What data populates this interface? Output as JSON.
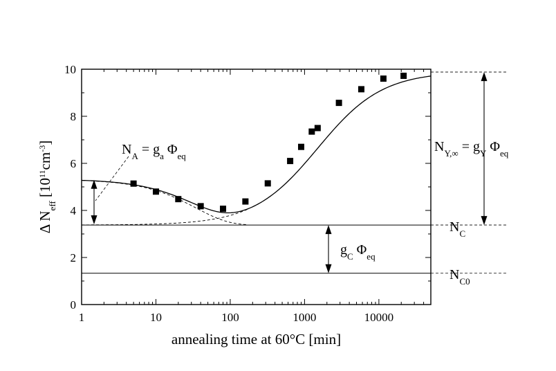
{
  "chart_data": {
    "type": "scatter",
    "xscale": "log",
    "xlim": [
      1,
      50000
    ],
    "ylim": [
      0,
      10
    ],
    "xticks": [
      1,
      10,
      100,
      1000,
      10000
    ],
    "xtick_labels": [
      "1",
      "10",
      "100",
      "1000",
      "10000"
    ],
    "yticks": [
      0,
      2,
      4,
      6,
      8,
      10
    ],
    "ytick_labels": [
      "0",
      "2",
      "4",
      "6",
      "8",
      "10"
    ],
    "xlabel": "annealing time at 60°C [min]",
    "ylabel": {
      "prefix": "Δ N",
      "sub": "eff",
      "unit_open": " [10",
      "exp": "11",
      "unit_mid": "cm",
      "unit_exp": "-3",
      "unit_close": "]"
    },
    "grid": false,
    "legend": "none",
    "series": [
      {
        "marker": "square",
        "points": [
          {
            "x": 5,
            "y": 5.14
          },
          {
            "x": 10,
            "y": 4.8
          },
          {
            "x": 20,
            "y": 4.48
          },
          {
            "x": 40,
            "y": 4.18
          },
          {
            "x": 80,
            "y": 4.07
          },
          {
            "x": 160,
            "y": 4.38
          },
          {
            "x": 320,
            "y": 5.15
          },
          {
            "x": 640,
            "y": 6.1
          },
          {
            "x": 900,
            "y": 6.7
          },
          {
            "x": 1250,
            "y": 7.35
          },
          {
            "x": 1500,
            "y": 7.5
          },
          {
            "x": 2900,
            "y": 8.57
          },
          {
            "x": 5800,
            "y": 9.15
          },
          {
            "x": 11500,
            "y": 9.6
          },
          {
            "x": 21500,
            "y": 9.72
          }
        ]
      }
    ],
    "model": {
      "N_C0": 1.33,
      "N_C": 3.38,
      "N_A": 1.95,
      "tau_a": 35,
      "N_Y": 6.52,
      "tau_y": 1500
    },
    "annotations": {
      "NA": {
        "main": "N",
        "sub": "A",
        "mid": " = g",
        "sub2": "a",
        "phi": " Φ",
        "sub3": "eq"
      },
      "NY": {
        "main": "N",
        "sub": "Y,∞",
        "mid": " = g",
        "sub2": "Y",
        "phi": " Φ",
        "sub3": "eq"
      },
      "gC": {
        "main": "g",
        "sub": "C",
        "phi": " Φ",
        "sub2": "eq"
      },
      "NC": {
        "main": "N",
        "sub": "C"
      },
      "NC0": {
        "main": "N",
        "sub": "C0"
      }
    }
  }
}
